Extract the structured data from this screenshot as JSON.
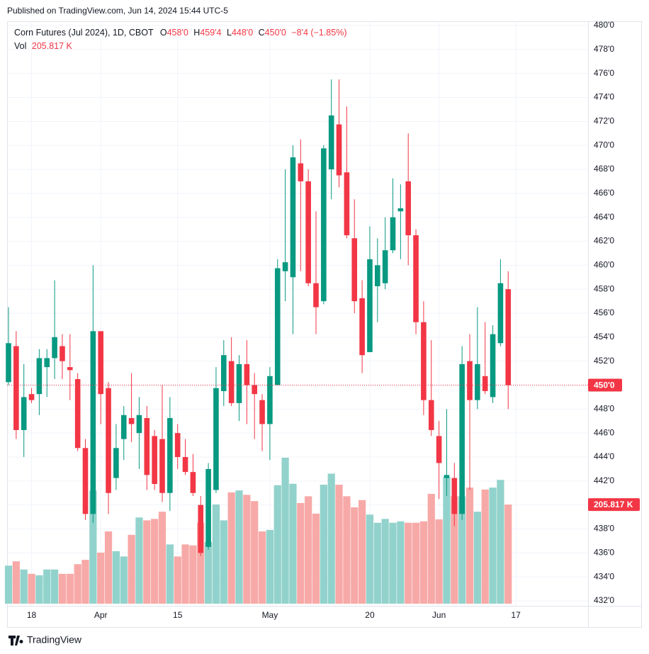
{
  "published": "Published on TradingView.com, Jun 14, 2024 15:44 UTC-5",
  "footer": "TradingView",
  "chart_data": {
    "type": "candlestick",
    "legend": {
      "symbol": "Corn Futures (Jul 2024), 1D, CBOT",
      "ohlc": [
        {
          "key": "O",
          "value": "458'0"
        },
        {
          "key": "H",
          "value": "459'4"
        },
        {
          "key": "L",
          "value": "448'0"
        },
        {
          "key": "C",
          "value": "450'0"
        }
      ],
      "change": "−8'4 (−1.85%)",
      "vol_key": "Vol",
      "vol_value": "205.817 K"
    },
    "last_price_label": "450'0",
    "last_volume_label": "205.817 K",
    "categories": [
      null,
      null,
      null,
      "18",
      null,
      null,
      null,
      null,
      null,
      null,
      null,
      null,
      "Apr",
      null,
      null,
      null,
      null,
      null,
      null,
      null,
      null,
      null,
      "15",
      null,
      null,
      null,
      null,
      null,
      null,
      null,
      null,
      null,
      null,
      null,
      "May",
      null,
      null,
      null,
      null,
      null,
      null,
      null,
      null,
      null,
      null,
      null,
      null,
      "20",
      null,
      null,
      null,
      null,
      null,
      null,
      null,
      null,
      "Jun",
      null,
      null,
      null,
      null,
      null,
      null,
      null,
      null,
      null,
      "17"
    ],
    "open": [
      450.25,
      453.25,
      446.25,
      449.25,
      449.25,
      451.5,
      452.25,
      453.25,
      451.5,
      450.5,
      444.75,
      439.25,
      454.5,
      449.75,
      442.25,
      445.5,
      447.25,
      446.0,
      447.25,
      445.75,
      445.5,
      441.0,
      446.0,
      444.0,
      442.75,
      440.0,
      436.5,
      441.25,
      449.5,
      452.0,
      448.5,
      451.75,
      450.0,
      448.75,
      446.75,
      450.0,
      459.5,
      459.0,
      468.5,
      467.0,
      458.5,
      457.0,
      468.0,
      471.75,
      467.75,
      462.25,
      457.25,
      452.75,
      458.25,
      458.5,
      461.25,
      464.5,
      467.0,
      462.5,
      455.25,
      448.75,
      445.75,
      442.25,
      442.25,
      439.25,
      452.0,
      448.75,
      450.75,
      449.0,
      453.5,
      458.0,
      null
    ],
    "high": [
      456.5,
      454.5,
      451.75,
      449.75,
      453.0,
      453.0,
      458.75,
      454.25,
      454.25,
      451.0,
      445.5,
      460.0,
      454.5,
      450.25,
      446.75,
      448.25,
      451.0,
      449.0,
      448.25,
      446.25,
      450.0,
      449.0,
      446.75,
      445.5,
      444.25,
      440.75,
      443.5,
      451.5,
      453.75,
      454.0,
      452.5,
      453.75,
      451.0,
      449.25,
      451.5,
      460.5,
      468.0,
      470.0,
      470.5,
      468.0,
      464.5,
      470.0,
      475.5,
      475.5,
      473.25,
      465.5,
      458.75,
      463.25,
      462.25,
      464.0,
      467.25,
      466.75,
      471.0,
      463.0,
      457.0,
      453.75,
      447.0,
      448.0,
      443.5,
      453.25,
      454.25,
      456.5,
      455.25,
      455.0,
      460.5,
      459.5,
      null
    ],
    "low": [
      450.0,
      445.5,
      444.0,
      448.5,
      447.5,
      449.0,
      450.5,
      450.5,
      448.75,
      444.5,
      438.75,
      438.5,
      446.75,
      439.25,
      441.25,
      443.75,
      445.25,
      443.0,
      441.25,
      441.25,
      440.25,
      439.5,
      443.0,
      442.5,
      440.75,
      435.75,
      436.25,
      441.0,
      448.25,
      448.25,
      447.0,
      446.75,
      445.5,
      444.5,
      443.75,
      450.0,
      457.0,
      454.25,
      459.5,
      458.25,
      454.25,
      456.75,
      465.5,
      466.5,
      462.25,
      456.0,
      451.0,
      452.75,
      455.25,
      458.0,
      461.0,
      460.5,
      460.0,
      454.25,
      447.5,
      445.75,
      440.5,
      440.75,
      438.25,
      438.75,
      441.25,
      448.0,
      449.25,
      448.5,
      453.25,
      448.0,
      null
    ],
    "close": [
      453.5,
      446.25,
      449.0,
      448.75,
      452.25,
      452.25,
      454.0,
      452.0,
      451.25,
      444.75,
      439.25,
      454.5,
      449.25,
      441.0,
      444.75,
      447.5,
      446.75,
      447.5,
      442.5,
      441.75,
      441.0,
      447.25,
      444.0,
      442.75,
      441.0,
      436.0,
      443.0,
      449.75,
      452.5,
      448.5,
      451.75,
      450.0,
      449.25,
      446.75,
      450.75,
      459.75,
      460.25,
      469.0,
      467.0,
      458.5,
      456.5,
      469.75,
      472.5,
      467.5,
      462.5,
      457.0,
      452.5,
      460.5,
      460.0,
      461.25,
      464.0,
      464.75,
      462.5,
      455.25,
      448.75,
      446.25,
      443.5,
      442.5,
      439.25,
      451.75,
      448.75,
      451.75,
      449.5,
      454.25,
      458.5,
      450.0,
      null
    ],
    "volume": [
      79,
      88,
      71,
      62,
      59,
      71,
      71,
      62,
      62,
      82,
      91,
      235,
      106,
      150,
      109,
      98,
      143,
      179,
      173,
      176,
      191,
      123,
      98,
      123,
      121,
      168,
      128,
      206,
      173,
      231,
      235,
      226,
      213,
      150,
      153,
      246,
      303,
      249,
      209,
      223,
      187,
      247,
      270,
      247,
      223,
      200,
      215,
      185,
      168,
      176,
      168,
      171,
      168,
      168,
      171,
      228,
      175,
      263,
      223,
      223,
      241,
      191,
      237,
      241,
      257,
      205.817,
      null
    ],
    "up_color": "#089981",
    "down_color": "#f23645",
    "volume_up_color": "#92d2cc",
    "volume_down_color": "#f7a9a7",
    "ylim": [
      432,
      480
    ],
    "yticks": [
      {
        "value": 480,
        "label": "480'0"
      },
      {
        "value": 478,
        "label": "478'0"
      },
      {
        "value": 476,
        "label": "476'0"
      },
      {
        "value": 474,
        "label": "474'0"
      },
      {
        "value": 472,
        "label": "472'0"
      },
      {
        "value": 470,
        "label": "470'0"
      },
      {
        "value": 468,
        "label": "468'0"
      },
      {
        "value": 466,
        "label": "466'0"
      },
      {
        "value": 464,
        "label": "464'0"
      },
      {
        "value": 462,
        "label": "462'0"
      },
      {
        "value": 460,
        "label": "460'0"
      },
      {
        "value": 458,
        "label": "458'0"
      },
      {
        "value": 456,
        "label": "456'0"
      },
      {
        "value": 454,
        "label": "454'0"
      },
      {
        "value": 452,
        "label": "452'0"
      },
      {
        "value": 450,
        "label": "450'0"
      },
      {
        "value": 448,
        "label": "448'0"
      },
      {
        "value": 446,
        "label": "446'0"
      },
      {
        "value": 444,
        "label": "444'0"
      },
      {
        "value": 442,
        "label": "442'0"
      },
      {
        "value": 440,
        "label": "440'0"
      },
      {
        "value": 438,
        "label": "438'0"
      },
      {
        "value": 436,
        "label": "436'0"
      },
      {
        "value": 434,
        "label": "434'0"
      },
      {
        "value": 432,
        "label": "432'0"
      }
    ],
    "grid": true
  }
}
